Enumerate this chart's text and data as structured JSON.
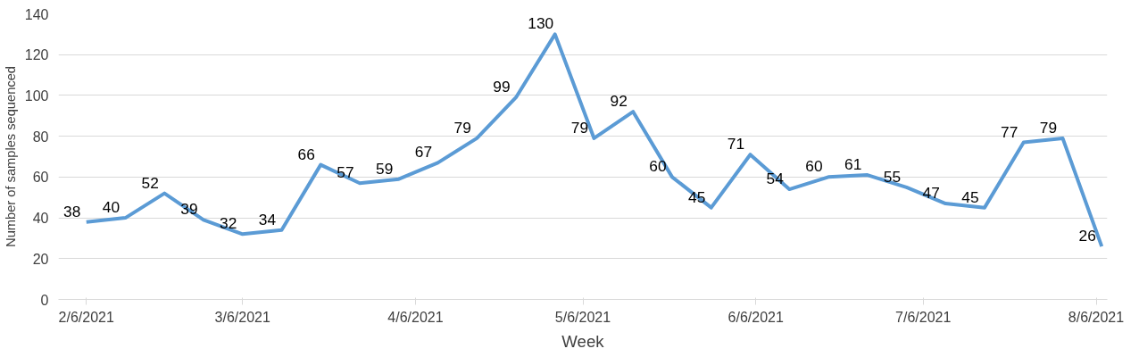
{
  "chart_data": {
    "type": "line",
    "xlabel": "Week",
    "ylabel": "Number of samples sequenced",
    "x": [
      "2021-02-06",
      "2021-02-13",
      "2021-02-20",
      "2021-02-27",
      "2021-03-06",
      "2021-03-13",
      "2021-03-20",
      "2021-03-27",
      "2021-04-03",
      "2021-04-10",
      "2021-04-17",
      "2021-04-24",
      "2021-05-01",
      "2021-05-08",
      "2021-05-15",
      "2021-05-22",
      "2021-05-29",
      "2021-06-05",
      "2021-06-12",
      "2021-06-19",
      "2021-06-26",
      "2021-07-03",
      "2021-07-10",
      "2021-07-17",
      "2021-07-24",
      "2021-07-31",
      "2021-08-07"
    ],
    "series": [
      {
        "color": "#5b9bd5",
        "values": [
          38,
          40,
          52,
          39,
          32,
          34,
          66,
          57,
          59,
          67,
          79,
          99,
          130,
          79,
          92,
          60,
          45,
          71,
          54,
          60,
          61,
          55,
          47,
          45,
          77,
          79,
          26
        ]
      }
    ],
    "data_labels": true,
    "xlim": [
      "2021-02-01",
      "2021-08-08"
    ],
    "xticks": [
      {
        "value": "2021-02-06",
        "label": "2/6/2021"
      },
      {
        "value": "2021-03-06",
        "label": "3/6/2021"
      },
      {
        "value": "2021-04-06",
        "label": "4/6/2021"
      },
      {
        "value": "2021-05-06",
        "label": "5/6/2021"
      },
      {
        "value": "2021-06-06",
        "label": "6/6/2021"
      },
      {
        "value": "2021-07-06",
        "label": "7/6/2021"
      },
      {
        "value": "2021-08-06",
        "label": "8/6/2021"
      }
    ],
    "ylim": [
      0,
      140
    ],
    "yticks": [
      0,
      20,
      40,
      60,
      80,
      100,
      120,
      140
    ],
    "grid": "y",
    "marker": "none",
    "line_style": "solid"
  }
}
